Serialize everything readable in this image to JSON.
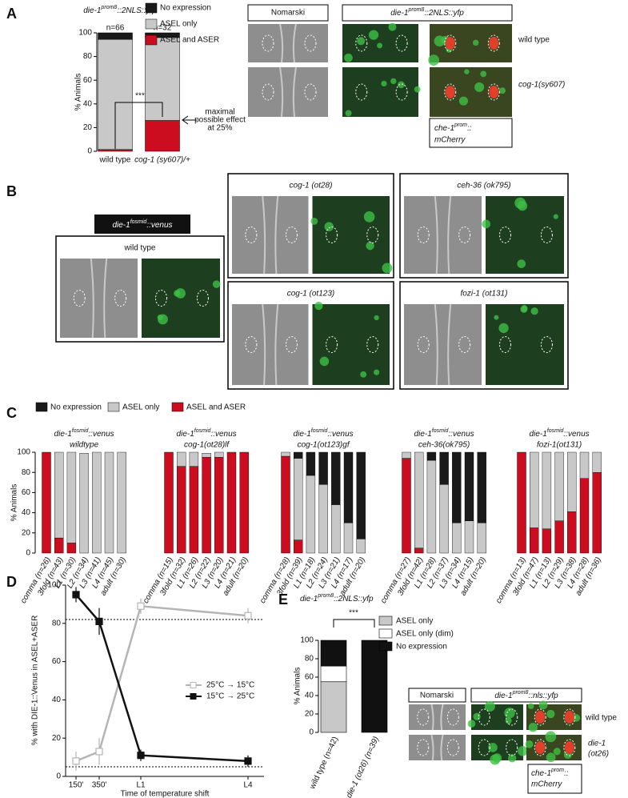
{
  "panel_labels": [
    "A",
    "B",
    "C",
    "D",
    "E"
  ],
  "figure_a": {
    "headers": [
      "Nomarski",
      [
        "die-1",
        "prom8",
        "::2NLS::yfp"
      ]
    ],
    "rows": [
      "wild type",
      "cog-1(sy607)"
    ],
    "reporter": {
      "lines": [
        [
          "che-1",
          "prom",
          "::"
        ],
        "mCherry"
      ]
    }
  },
  "figure_b": {
    "reporter": [
      "die-1",
      "fosmid",
      "::venus"
    ],
    "panels": [
      "wild type",
      "cog-1 (ot28)",
      "ceh-36 (ok795)",
      "cog-1 (ot123)",
      "fozi-1 (ot131)"
    ]
  },
  "figure_e": {
    "headers": [
      "Nomarski",
      [
        "die-1",
        "prom8",
        "::nls::yfp"
      ]
    ],
    "rows": [
      "wild type",
      {
        "lines": [
          "die-1",
          "(ot26)"
        ]
      }
    ],
    "reporter": {
      "lines": [
        [
          "che-1",
          "prom",
          "::"
        ],
        "mCherry"
      ]
    }
  },
  "chart_data": [
    {
      "type": "bar",
      "stacked": true,
      "title": [
        "die-1",
        "prom8",
        "::2NLS::yfp"
      ],
      "categories": [
        "wild type",
        "cog-1 (sy607)/+"
      ],
      "category_notes": [
        "n=66",
        "n=32"
      ],
      "series": [
        {
          "name": "ASEL and ASER",
          "color": "#cc0c1f",
          "values": [
            1.5,
            26
          ]
        },
        {
          "name": "ASEL only",
          "color": "#c8c8c8",
          "values": [
            93,
            70
          ]
        },
        {
          "name": "No expression",
          "color": "#1a1a1a",
          "values": [
            5.5,
            4
          ]
        }
      ],
      "ylabel": "% Animals",
      "ylim": [
        0,
        100
      ],
      "yticks": [
        0,
        20,
        40,
        60,
        80,
        100
      ],
      "significance": "***",
      "annotation": {
        "lines": [
          "maximal",
          "possible effect",
          "at 25%"
        ]
      }
    },
    {
      "type": "bar",
      "stacked": true,
      "series": [
        {
          "name": "ASEL and ASER",
          "color": "#cc0c1f"
        },
        {
          "name": "ASEL only",
          "color": "#c8c8c8"
        },
        {
          "name": "No expression",
          "color": "#1a1a1a"
        }
      ],
      "ylabel": "% Animals",
      "ylim": [
        0,
        100
      ],
      "yticks": [
        0,
        20,
        40,
        60,
        80,
        100
      ],
      "groups": [
        {
          "title": [
            "die-1",
            "fosmid",
            "::venus"
          ],
          "subtitle": "wildtype",
          "categories": [
            "comma (n=26)",
            "3fold (n=43)",
            "L1 (n=30)",
            "L2 (n=34)",
            "L3 (n=41)",
            "L4 (n=45)",
            "adult (n=30)"
          ],
          "values": [
            [
              100,
              15,
              10,
              0,
              0,
              0,
              0
            ],
            [
              0,
              85,
              90,
              99,
              100,
              100,
              100
            ],
            [
              0,
              0,
              0,
              0,
              0,
              0,
              0
            ]
          ]
        },
        {
          "title": [
            "die-1",
            "fosmid",
            "::venus"
          ],
          "subtitle": "cog-1(ot28)lf",
          "categories": [
            "comma (n=15)",
            "3fold (n=32)",
            "L1 (n=26)",
            "L2 (n=22)",
            "L3 (n=20)",
            "L4 (n=21)",
            "adult (n=20)"
          ],
          "values": [
            [
              100,
              86,
              86,
              95,
              95,
              100,
              100
            ],
            [
              0,
              14,
              14,
              4,
              5,
              0,
              0
            ],
            [
              0,
              0,
              0,
              0,
              0,
              0,
              0
            ]
          ]
        },
        {
          "title": [
            "die-1",
            "fosmid",
            "::venus"
          ],
          "subtitle": "cog-1(ot123)gf",
          "categories": [
            "comma (n=28)",
            "3fold (n=39)",
            "L1 (n=18)",
            "L2 (n=24)",
            "L3 (n=21)",
            "L4 (n=17)",
            "adult (n=20)"
          ],
          "values": [
            [
              96,
              13,
              0,
              0,
              0,
              0,
              0
            ],
            [
              4,
              81,
              77,
              68,
              48,
              30,
              14
            ],
            [
              0,
              6,
              23,
              32,
              52,
              70,
              86
            ]
          ]
        },
        {
          "title": [
            "die-1",
            "fosmid",
            "::venus"
          ],
          "subtitle": "ceh-36(ok795)",
          "categories": [
            "comma (n=27)",
            "3fold (n=42)",
            "L1 (n=28)",
            "L2 (n=37)",
            "L3 (n=34)",
            "L4 (n=15)",
            "adult (n=20)"
          ],
          "values": [
            [
              94,
              5,
              0,
              0,
              0,
              0,
              0
            ],
            [
              6,
              95,
              92,
              68,
              30,
              32,
              30
            ],
            [
              0,
              0,
              8,
              32,
              70,
              68,
              70
            ]
          ]
        },
        {
          "title": [
            "die-1",
            "fosmid",
            "::venus"
          ],
          "subtitle": "fozi-1(ot131)",
          "categories": [
            "comma (n=13)",
            "3fold (n=47)",
            "L1 (n=13)",
            "L2 (n=29)",
            "L3 (n=38)",
            "L4 (n=28)",
            "adult (n=36)"
          ],
          "values": [
            [
              100,
              25,
              24,
              32,
              41,
              74,
              80
            ],
            [
              0,
              75,
              76,
              68,
              59,
              26,
              20
            ],
            [
              0,
              0,
              0,
              0,
              0,
              0,
              0
            ]
          ]
        }
      ]
    },
    {
      "type": "line",
      "categories": [
        "150'",
        "350'",
        "L1",
        "L4"
      ],
      "series": [
        {
          "name": "25°C → 15°C",
          "color": "#b5b5b5",
          "marker": "open-square",
          "values": [
            8,
            13,
            89,
            84
          ],
          "errors": [
            5,
            7,
            4,
            4
          ]
        },
        {
          "name": "15°C → 25°C",
          "color": "#111111",
          "marker": "filled-square",
          "values": [
            95,
            81,
            11,
            8
          ],
          "errors": [
            4,
            7,
            3,
            3
          ]
        }
      ],
      "reference_lines": [
        82,
        5
      ],
      "xlabel": "Time of temperature shift",
      "ylabel": "% with DIE-1::Venus in ASEL+ASER",
      "ylim": [
        0,
        100
      ],
      "yticks": [
        0,
        20,
        40,
        60,
        80,
        100
      ]
    },
    {
      "type": "bar",
      "stacked": true,
      "title": [
        "die-1",
        "prom8",
        "::2NLS::yfp"
      ],
      "categories": [
        "wild type (n=42)",
        "die-1 (ot26) (n=39)"
      ],
      "series": [
        {
          "name": "ASEL only",
          "color": "#c8c8c8",
          "values": [
            55,
            0
          ]
        },
        {
          "name": "ASEL only (dim)",
          "color": "#ffffff",
          "values": [
            17,
            0
          ]
        },
        {
          "name": "No expression",
          "color": "#111111",
          "values": [
            28,
            100
          ]
        }
      ],
      "ylabel": "% Animals",
      "ylim": [
        0,
        100
      ],
      "yticks": [
        0,
        20,
        40,
        60,
        80,
        100
      ],
      "significance": "***"
    }
  ]
}
